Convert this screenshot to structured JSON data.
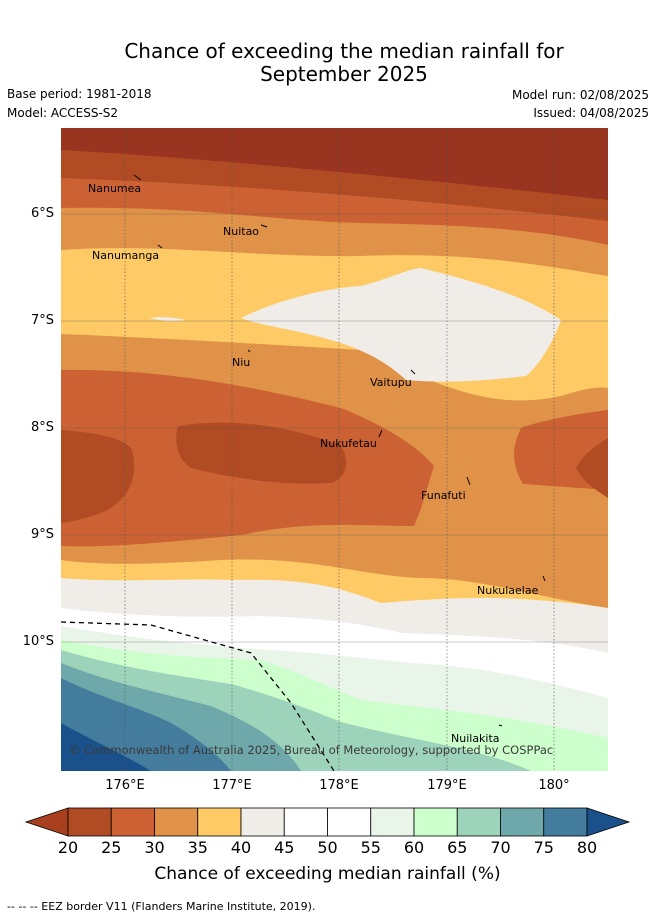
{
  "title_line1": "Chance of exceeding the median rainfall for",
  "title_line2": "September 2025",
  "base_period": "Base period: 1981-2018",
  "model": "Model: ACCESS-S2",
  "model_run": "Model run: 02/08/2025",
  "issued": "Issued: 04/08/2025",
  "lat_labels": [
    "6°S",
    "7°S",
    "8°S",
    "9°S",
    "10°S"
  ],
  "lon_labels": [
    "176°E",
    "177°E",
    "178°E",
    "179°E",
    "180°"
  ],
  "places": [
    "Nanumea",
    "Nuitao",
    "Nanumanga",
    "Niu",
    "Vaitupu",
    "Nukufetau",
    "Funafuti",
    "Nukulaelae",
    "Nuilakita"
  ],
  "copyright": "© Commonwealth of Australia 2025, Bureau of Meteorology, supported by COSPPac",
  "colorbar": {
    "ticks": [
      "20",
      "25",
      "30",
      "35",
      "40",
      "45",
      "50",
      "55",
      "60",
      "65",
      "70",
      "75",
      "80"
    ],
    "colors": [
      "#a8401f",
      "#b14b24",
      "#cc6233",
      "#e09348",
      "#fdca65",
      "#f0ece8",
      "#ffffff",
      "#ffffff",
      "#e9f5e9",
      "#ccffcc",
      "#9ed3bb",
      "#6fa8aa",
      "#437c9c",
      "#1b518b"
    ],
    "title": "Chance of exceeding median rainfall (%)"
  },
  "eez_note": "--  --  -- EEZ border V11 (Flanders Marine Institute, 2019)."
}
